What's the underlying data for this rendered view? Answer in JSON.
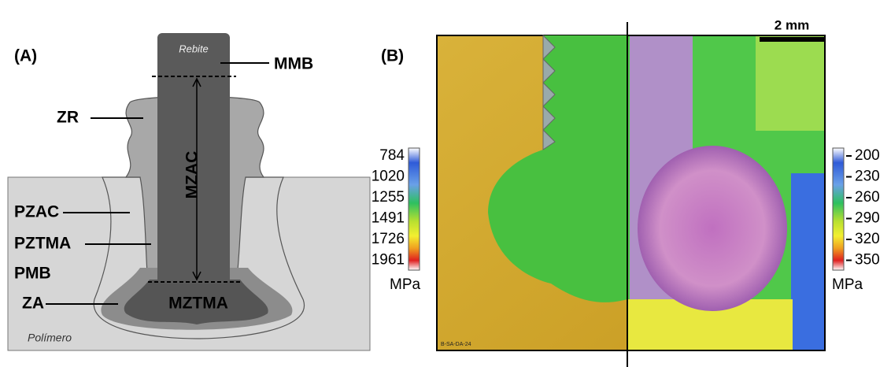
{
  "panel_a": {
    "label": "(A)",
    "rivet": "Rebite",
    "polymer": "Polímero",
    "zones": {
      "mmb": "MMB",
      "zr": "ZR",
      "pzac": "PZAC",
      "pztma": "PZTMA",
      "pmb": "PMB",
      "za": "ZA",
      "mzac": "MZAC",
      "mztma": "MZTMA"
    }
  },
  "panel_b": {
    "label": "(B)",
    "scale_bar": "2 mm",
    "image_caption": "B-SA-DA-24",
    "left_scale": {
      "unit": "MPa",
      "labels": [
        784,
        1020,
        1255,
        1491,
        1726,
        1961
      ]
    },
    "right_scale": {
      "unit": "MPa",
      "labels": [
        200,
        230,
        260,
        290,
        320,
        350
      ]
    }
  }
}
